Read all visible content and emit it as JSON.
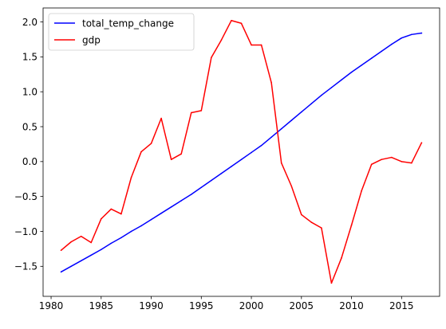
{
  "chart_data": {
    "type": "line",
    "title": "",
    "xlabel": "",
    "ylabel": "",
    "xlim": [
      1979.2,
      2018.8
    ],
    "ylim": [
      -1.93,
      2.2
    ],
    "x_ticks": [
      1980,
      1985,
      1990,
      1995,
      2000,
      2005,
      2010,
      2015
    ],
    "y_ticks": [
      -1.5,
      -1.0,
      -0.5,
      0.0,
      0.5,
      1.0,
      1.5,
      2.0
    ],
    "x_tick_labels": [
      "1980",
      "1985",
      "1990",
      "1995",
      "2000",
      "2005",
      "2010",
      "2015"
    ],
    "y_tick_labels": [
      "−1.5",
      "−1.0",
      "−0.5",
      "0.0",
      "0.5",
      "1.0",
      "1.5",
      "2.0"
    ],
    "grid": false,
    "legend_position": "upper-left",
    "x": [
      1981,
      1982,
      1983,
      1984,
      1985,
      1986,
      1987,
      1988,
      1989,
      1990,
      1991,
      1992,
      1993,
      1994,
      1995,
      1996,
      1997,
      1998,
      1999,
      2000,
      2001,
      2002,
      2003,
      2004,
      2005,
      2006,
      2007,
      2008,
      2009,
      2010,
      2011,
      2012,
      2013,
      2014,
      2015,
      2016,
      2017
    ],
    "series": [
      {
        "name": "total_temp_change",
        "color": "#0000ff",
        "values": [
          -1.58,
          -1.5,
          -1.42,
          -1.34,
          -1.26,
          -1.17,
          -1.09,
          -1.0,
          -0.92,
          -0.83,
          -0.74,
          -0.65,
          -0.56,
          -0.47,
          -0.37,
          -0.27,
          -0.17,
          -0.07,
          0.03,
          0.13,
          0.23,
          0.35,
          0.47,
          0.59,
          0.71,
          0.83,
          0.95,
          1.06,
          1.17,
          1.28,
          1.38,
          1.48,
          1.58,
          1.68,
          1.77,
          1.82,
          1.84
        ]
      },
      {
        "name": "gdp",
        "color": "#ff0000",
        "values": [
          -1.27,
          -1.15,
          -1.07,
          -1.16,
          -0.82,
          -0.68,
          -0.75,
          -0.23,
          0.14,
          0.26,
          0.62,
          0.03,
          0.11,
          0.7,
          0.73,
          1.49,
          1.74,
          2.02,
          1.98,
          1.67,
          1.67,
          1.13,
          -0.02,
          -0.35,
          -0.76,
          -0.87,
          -0.95,
          -1.74,
          -1.38,
          -0.91,
          -0.42,
          -0.04,
          0.03,
          0.06,
          0.0,
          -0.02,
          0.27
        ]
      }
    ]
  }
}
